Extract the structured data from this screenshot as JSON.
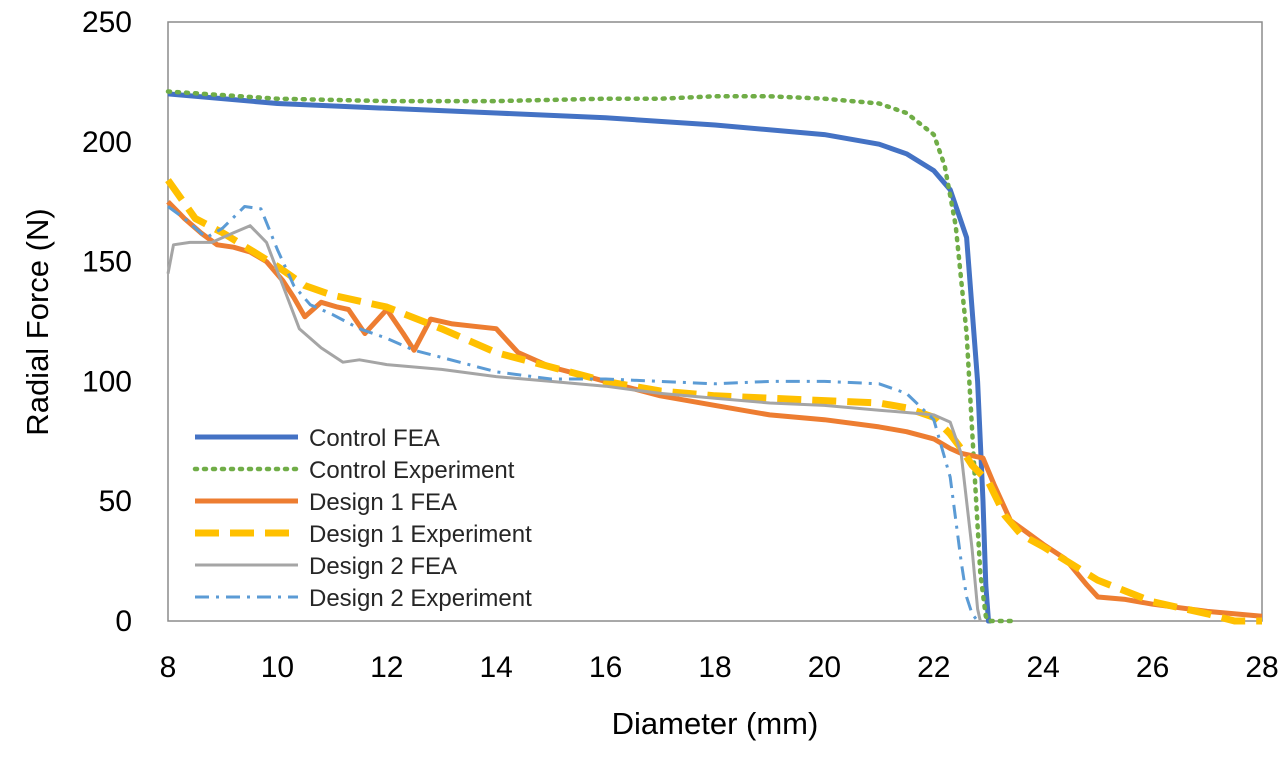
{
  "chart_data": {
    "type": "line",
    "title": "",
    "xlabel": "Diameter (mm)",
    "ylabel": "Radial Force (N)",
    "xlim": [
      8,
      28
    ],
    "ylim": [
      0,
      250
    ],
    "xticks": [
      8,
      10,
      12,
      14,
      16,
      18,
      20,
      22,
      24,
      26,
      28
    ],
    "yticks": [
      0,
      50,
      100,
      150,
      200,
      250
    ],
    "grid": false,
    "legend_position": "bottom-left",
    "series": [
      {
        "name": "Control FEA",
        "color": "#4472C4",
        "style": "solid",
        "x": [
          8,
          10,
          12,
          14,
          16,
          18,
          20,
          21,
          21.5,
          22,
          22.3,
          22.6,
          22.8,
          22.9,
          22.95,
          23.0,
          23.05
        ],
        "y": [
          220,
          216,
          214,
          212,
          210,
          207,
          203,
          199,
          195,
          188,
          180,
          160,
          100,
          50,
          15,
          0,
          0
        ]
      },
      {
        "name": "Control Experiment",
        "color": "#70AD47",
        "style": "dotted",
        "x": [
          8,
          10,
          12,
          14,
          16,
          17,
          18,
          19,
          20,
          21,
          21.5,
          22,
          22.2,
          22.4,
          22.6,
          22.75,
          22.85,
          22.95,
          23.0,
          23.5
        ],
        "y": [
          221,
          218,
          217,
          217,
          218,
          218,
          219,
          219,
          218,
          216,
          212,
          203,
          190,
          165,
          120,
          60,
          20,
          2,
          0,
          0
        ]
      },
      {
        "name": "Design 1 FEA",
        "color": "#ED7D31",
        "style": "solid",
        "x": [
          8,
          8.3,
          8.6,
          8.9,
          9.2,
          9.5,
          9.8,
          10.1,
          10.3,
          10.5,
          10.8,
          11.1,
          11.3,
          11.6,
          12.0,
          12.3,
          12.5,
          12.8,
          13.2,
          13.6,
          14.0,
          14.4,
          15.0,
          16.0,
          17.0,
          18.0,
          19.0,
          20.0,
          21.0,
          21.5,
          22.0,
          22.3,
          22.5,
          22.9,
          23.1,
          23.4,
          23.7,
          24.0,
          24.4,
          24.8,
          25.0,
          25.5,
          26.0,
          27.0,
          28.0
        ],
        "y": [
          175,
          168,
          162,
          157,
          156,
          154,
          150,
          142,
          135,
          127,
          133,
          131,
          130,
          120,
          130,
          120,
          113,
          126,
          124,
          123,
          122,
          112,
          106,
          100,
          94,
          90,
          86,
          84,
          81,
          79,
          76,
          72,
          70,
          68,
          57,
          42,
          37,
          32,
          26,
          15,
          10,
          9,
          7,
          4,
          2
        ]
      },
      {
        "name": "Design 1 Experiment",
        "color": "#FFC000",
        "style": "dashed",
        "x": [
          8,
          8.5,
          9,
          10,
          10.5,
          11,
          12,
          13,
          14,
          15,
          16,
          17,
          18,
          19,
          20,
          21,
          21.5,
          22,
          22.3,
          22.5,
          22.7,
          23,
          23.3,
          23.6,
          24,
          25,
          26,
          27,
          27.5,
          28
        ],
        "y": [
          184,
          168,
          162,
          148,
          140,
          136,
          131,
          122,
          112,
          106,
          100,
          96,
          94,
          93,
          92,
          91,
          89,
          85,
          78,
          72,
          65,
          58,
          44,
          36,
          31,
          17,
          8,
          3,
          0,
          0
        ]
      },
      {
        "name": "Design 2 FEA",
        "color": "#A5A5A5",
        "style": "solid",
        "x": [
          8,
          8.1,
          8.4,
          8.8,
          9.2,
          9.5,
          9.8,
          10.1,
          10.4,
          10.8,
          11.2,
          11.5,
          12,
          13,
          14,
          15,
          16,
          17,
          18,
          19,
          20,
          21,
          21.5,
          22,
          22.3,
          22.5,
          22.7,
          22.8,
          22.85
        ],
        "y": [
          145,
          157,
          158,
          158,
          162,
          165,
          158,
          140,
          122,
          114,
          108,
          109,
          107,
          105,
          102,
          100,
          98,
          95,
          93,
          91,
          90,
          88,
          87,
          86,
          83,
          70,
          30,
          5,
          0
        ]
      },
      {
        "name": "Design 2 Experiment",
        "color": "#5B9BD5",
        "style": "dashdot",
        "x": [
          8,
          8.3,
          8.7,
          9.0,
          9.4,
          9.7,
          10.0,
          10.3,
          10.6,
          11.0,
          11.5,
          12.0,
          12.5,
          13,
          14,
          15,
          16,
          17,
          18,
          19,
          20,
          21,
          21.5,
          22,
          22.3,
          22.5,
          22.6,
          22.7,
          22.8
        ],
        "y": [
          173,
          168,
          160,
          164,
          173,
          172,
          155,
          140,
          132,
          128,
          122,
          118,
          113,
          110,
          104,
          101,
          101,
          100,
          99,
          100,
          100,
          99,
          95,
          84,
          60,
          25,
          10,
          3,
          0
        ]
      }
    ]
  }
}
